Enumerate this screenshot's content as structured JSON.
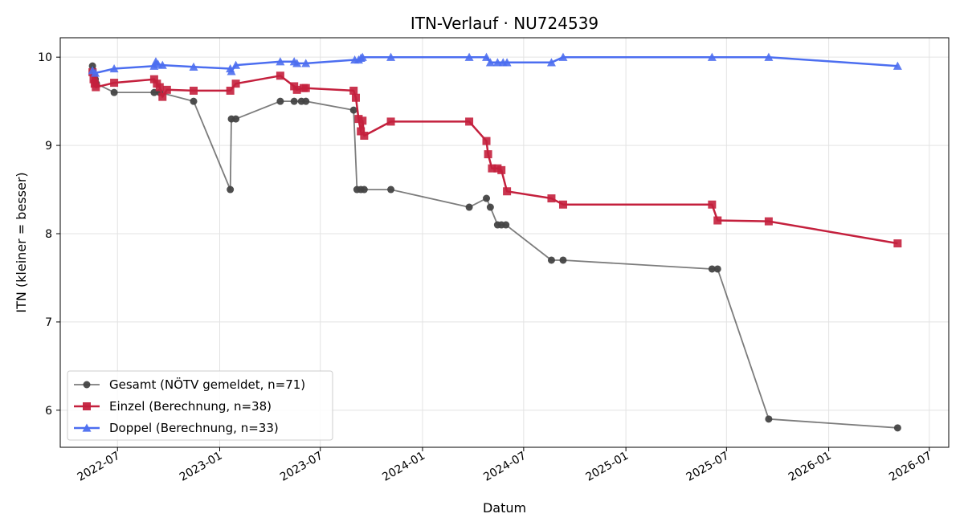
{
  "chart_data": {
    "type": "line",
    "title": "ITN-Verlauf · NU724539",
    "xlabel": "Datum",
    "ylabel": "ITN  (kleiner = besser)",
    "x_type": "date",
    "xlim": [
      "2022-03-20",
      "2026-08-05"
    ],
    "ylim": [
      5.58,
      10.22
    ],
    "yticks": [
      6,
      7,
      8,
      9,
      10
    ],
    "xticks": [
      "2022-07",
      "2023-01",
      "2023-07",
      "2024-01",
      "2024-07",
      "2025-01",
      "2025-07",
      "2026-01",
      "2026-07"
    ],
    "grid": true,
    "legend_position": "lower-left",
    "series": [
      {
        "name": "Gesamt (NÖTV gemeldet, n=71)",
        "color": "#444444",
        "marker": "circle",
        "points": [
          [
            "2022-05-17",
            9.9
          ],
          [
            "2022-05-18",
            9.85
          ],
          [
            "2022-05-20",
            9.8
          ],
          [
            "2022-05-22",
            9.75
          ],
          [
            "2022-05-24",
            9.7
          ],
          [
            "2022-06-25",
            9.6
          ],
          [
            "2022-09-05",
            9.6
          ],
          [
            "2022-09-15",
            9.6
          ],
          [
            "2022-11-15",
            9.5
          ],
          [
            "2023-01-20",
            8.5
          ],
          [
            "2023-01-22",
            9.3
          ],
          [
            "2023-01-30",
            9.3
          ],
          [
            "2023-04-20",
            9.5
          ],
          [
            "2023-05-15",
            9.5
          ],
          [
            "2023-05-28",
            9.5
          ],
          [
            "2023-06-05",
            9.5
          ],
          [
            "2023-08-30",
            9.4
          ],
          [
            "2023-09-05",
            8.5
          ],
          [
            "2023-09-12",
            8.5
          ],
          [
            "2023-09-18",
            8.5
          ],
          [
            "2023-11-05",
            8.5
          ],
          [
            "2024-03-25",
            8.3
          ],
          [
            "2024-04-25",
            8.4
          ],
          [
            "2024-05-02",
            8.3
          ],
          [
            "2024-05-15",
            8.1
          ],
          [
            "2024-05-22",
            8.1
          ],
          [
            "2024-05-30",
            8.1
          ],
          [
            "2024-08-20",
            7.7
          ],
          [
            "2024-09-10",
            7.7
          ],
          [
            "2025-06-05",
            7.6
          ],
          [
            "2025-06-15",
            7.6
          ],
          [
            "2025-09-15",
            5.9
          ],
          [
            "2026-05-05",
            5.8
          ]
        ]
      },
      {
        "name": "Einzel (Berechnung, n=38)",
        "color": "#c4203d",
        "marker": "square",
        "points": [
          [
            "2022-05-17",
            9.83
          ],
          [
            "2022-05-19",
            9.75
          ],
          [
            "2022-05-21",
            9.7
          ],
          [
            "2022-05-23",
            9.66
          ],
          [
            "2022-06-25",
            9.71
          ],
          [
            "2022-09-05",
            9.75
          ],
          [
            "2022-09-10",
            9.7
          ],
          [
            "2022-09-15",
            9.66
          ],
          [
            "2022-09-20",
            9.55
          ],
          [
            "2022-09-28",
            9.63
          ],
          [
            "2022-11-15",
            9.62
          ],
          [
            "2023-01-20",
            9.62
          ],
          [
            "2023-01-30",
            9.7
          ],
          [
            "2023-04-20",
            9.79
          ],
          [
            "2023-05-15",
            9.67
          ],
          [
            "2023-05-20",
            9.63
          ],
          [
            "2023-06-01",
            9.65
          ],
          [
            "2023-06-05",
            9.65
          ],
          [
            "2023-08-30",
            9.62
          ],
          [
            "2023-09-03",
            9.54
          ],
          [
            "2023-09-08",
            9.3
          ],
          [
            "2023-09-12",
            9.16
          ],
          [
            "2023-09-15",
            9.28
          ],
          [
            "2023-09-18",
            9.11
          ],
          [
            "2023-11-05",
            9.27
          ],
          [
            "2024-03-25",
            9.27
          ],
          [
            "2024-04-25",
            9.05
          ],
          [
            "2024-04-28",
            8.9
          ],
          [
            "2024-05-05",
            8.74
          ],
          [
            "2024-05-15",
            8.74
          ],
          [
            "2024-05-22",
            8.72
          ],
          [
            "2024-06-01",
            8.48
          ],
          [
            "2024-08-20",
            8.4
          ],
          [
            "2024-09-10",
            8.33
          ],
          [
            "2025-06-05",
            8.33
          ],
          [
            "2025-06-15",
            8.15
          ],
          [
            "2025-09-15",
            8.14
          ],
          [
            "2026-05-05",
            7.89
          ]
        ]
      },
      {
        "name": "Doppel (Berechnung, n=33)",
        "color": "#4c6ef0",
        "marker": "triangle",
        "points": [
          [
            "2022-05-17",
            9.85
          ],
          [
            "2022-05-22",
            9.82
          ],
          [
            "2022-06-25",
            9.87
          ],
          [
            "2022-09-05",
            9.9
          ],
          [
            "2022-09-08",
            9.95
          ],
          [
            "2022-09-12",
            9.92
          ],
          [
            "2022-09-20",
            9.91
          ],
          [
            "2022-11-15",
            9.89
          ],
          [
            "2023-01-20",
            9.87
          ],
          [
            "2023-01-22",
            9.84
          ],
          [
            "2023-01-30",
            9.91
          ],
          [
            "2023-04-20",
            9.95
          ],
          [
            "2023-05-15",
            9.95
          ],
          [
            "2023-05-20",
            9.93
          ],
          [
            "2023-06-05",
            9.93
          ],
          [
            "2023-09-01",
            9.97
          ],
          [
            "2023-09-08",
            9.97
          ],
          [
            "2023-09-12",
            9.99
          ],
          [
            "2023-09-15",
            10.0
          ],
          [
            "2023-11-05",
            10.0
          ],
          [
            "2024-03-25",
            10.0
          ],
          [
            "2024-04-25",
            10.0
          ],
          [
            "2024-05-02",
            9.94
          ],
          [
            "2024-05-15",
            9.94
          ],
          [
            "2024-05-25",
            9.94
          ],
          [
            "2024-06-01",
            9.94
          ],
          [
            "2024-08-20",
            9.94
          ],
          [
            "2024-09-10",
            10.0
          ],
          [
            "2025-06-05",
            10.0
          ],
          [
            "2025-09-15",
            10.0
          ],
          [
            "2026-05-05",
            9.9
          ]
        ]
      }
    ]
  }
}
